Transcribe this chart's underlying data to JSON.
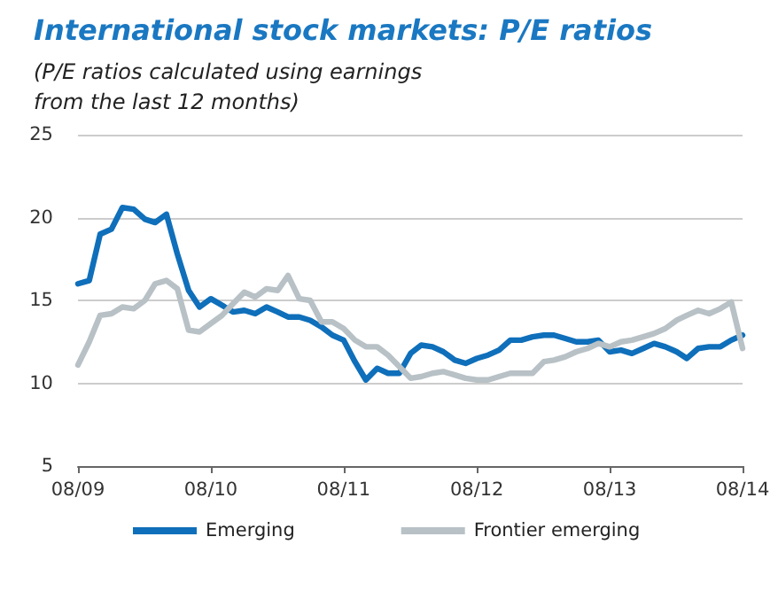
{
  "chart_data": {
    "type": "line",
    "title": "International stock markets: P/E ratios",
    "subtitle": "(P/E ratios calculated using earnings\nfrom the last 12 months)",
    "x": [
      "2009-08",
      "2009-09",
      "2009-10",
      "2009-11",
      "2009-12",
      "2010-01",
      "2010-02",
      "2010-03",
      "2010-04",
      "2010-05",
      "2010-06",
      "2010-07",
      "2010-08",
      "2010-09",
      "2010-10",
      "2010-11",
      "2010-12",
      "2011-01",
      "2011-02",
      "2011-03",
      "2011-04",
      "2011-05",
      "2011-06",
      "2011-07",
      "2011-08",
      "2011-09",
      "2011-10",
      "2011-11",
      "2011-12",
      "2012-01",
      "2012-02",
      "2012-03",
      "2012-04",
      "2012-05",
      "2012-06",
      "2012-07",
      "2012-08",
      "2012-09",
      "2012-10",
      "2012-11",
      "2012-12",
      "2013-01",
      "2013-02",
      "2013-03",
      "2013-04",
      "2013-05",
      "2013-06",
      "2013-07",
      "2013-08",
      "2013-09",
      "2013-10",
      "2013-11",
      "2013-12",
      "2014-01",
      "2014-02",
      "2014-03",
      "2014-04",
      "2014-05",
      "2014-06",
      "2014-07",
      "2014-08"
    ],
    "series": [
      {
        "name": "Emerging",
        "color": "#0f6fba",
        "values": [
          16.0,
          16.2,
          19.0,
          19.3,
          20.6,
          20.5,
          19.9,
          19.7,
          20.2,
          17.8,
          15.6,
          14.6,
          15.1,
          14.7,
          14.3,
          14.4,
          14.2,
          14.6,
          14.3,
          14.0,
          14.0,
          13.8,
          13.4,
          12.9,
          12.6,
          11.3,
          10.2,
          10.9,
          10.6,
          10.6,
          11.8,
          12.3,
          12.2,
          11.9,
          11.4,
          11.2,
          11.5,
          11.7,
          12.0,
          12.6,
          12.6,
          12.8,
          12.9,
          12.9,
          12.7,
          12.5,
          12.5,
          12.6,
          11.9,
          12.0,
          11.8,
          12.1,
          12.4,
          12.2,
          11.9,
          11.5,
          12.1,
          12.2,
          12.2,
          12.6,
          12.9
        ]
      },
      {
        "name": "Frontier emerging",
        "color": "#b8c1c6",
        "values": [
          11.1,
          12.5,
          14.1,
          14.2,
          14.6,
          14.5,
          15.0,
          16.0,
          16.2,
          15.7,
          13.2,
          13.1,
          13.6,
          14.1,
          14.8,
          15.5,
          15.2,
          15.7,
          15.6,
          16.5,
          15.1,
          15.0,
          13.7,
          13.7,
          13.3,
          12.6,
          12.2,
          12.2,
          11.7,
          11.0,
          10.3,
          10.4,
          10.6,
          10.7,
          10.5,
          10.3,
          10.2,
          10.2,
          10.4,
          10.6,
          10.6,
          10.6,
          11.3,
          11.4,
          11.6,
          11.9,
          12.1,
          12.4,
          12.2,
          12.5,
          12.6,
          12.8,
          13.0,
          13.3,
          13.8,
          14.1,
          14.4,
          14.2,
          14.5,
          14.9,
          12.1
        ]
      }
    ],
    "xlim": [
      "2009-08",
      "2014-08"
    ],
    "xticks": [
      {
        "value": "2009-08",
        "label": "08/09"
      },
      {
        "value": "2010-08",
        "label": "08/10"
      },
      {
        "value": "2011-08",
        "label": "08/11"
      },
      {
        "value": "2012-08",
        "label": "08/12"
      },
      {
        "value": "2013-08",
        "label": "08/13"
      },
      {
        "value": "2014-08",
        "label": "08/14"
      }
    ],
    "ylim": [
      5,
      25
    ],
    "yticks": [
      5,
      10,
      15,
      20,
      25
    ],
    "grid": "y",
    "legend": "bottom",
    "marker": "none",
    "line_style": "solid"
  }
}
